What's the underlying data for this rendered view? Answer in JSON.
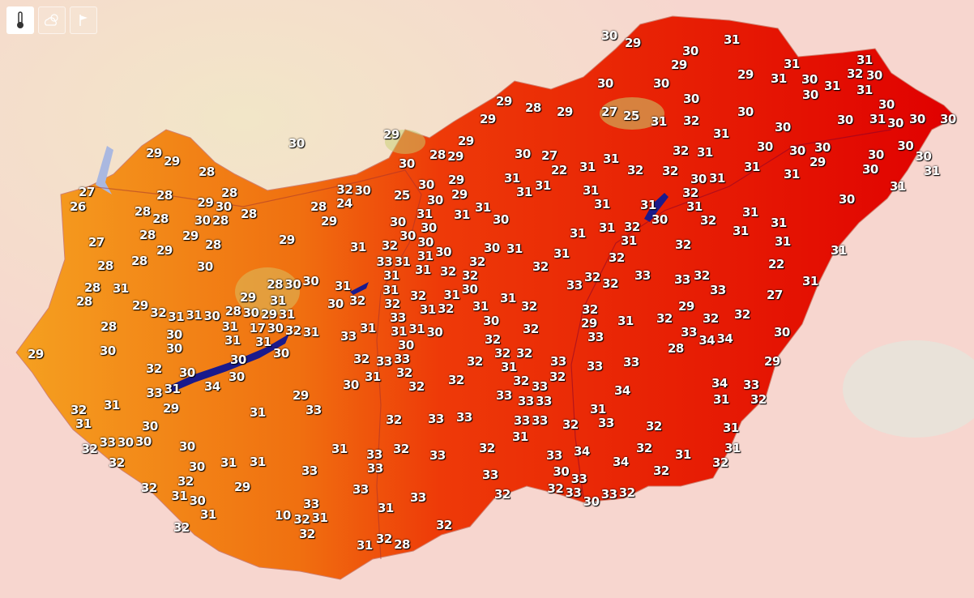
{
  "toolbar": {
    "buttons": [
      {
        "icon": "thermometer-icon",
        "active": true
      },
      {
        "icon": "cloud-sun-icon",
        "active": false
      },
      {
        "icon": "flag-icon",
        "active": false
      }
    ]
  },
  "map": {
    "country": "Hungary",
    "colors": {
      "cool": "#f5a020",
      "mid": "#f06010",
      "hot": "#e00000",
      "lake": "#1a1a8c",
      "surround": "#f7d6cf"
    },
    "temperatures": [
      30,
      29,
      31,
      30,
      29,
      31,
      31,
      32,
      31,
      30,
      30,
      31,
      29,
      30,
      30,
      30,
      31,
      30,
      29,
      28,
      29,
      27,
      25,
      30,
      30,
      31,
      30,
      30,
      30,
      30,
      29,
      31,
      32,
      30,
      31,
      29,
      29,
      30,
      30,
      30,
      30,
      30,
      31,
      32,
      29,
      29,
      28,
      29,
      30,
      27,
      22,
      31,
      30,
      30,
      29,
      30,
      31,
      32,
      32,
      30,
      31,
      31,
      31,
      30,
      31,
      28,
      31,
      31,
      31,
      29,
      29,
      30,
      32,
      30,
      31,
      32,
      31,
      31,
      27,
      26,
      28,
      29,
      28,
      30,
      25,
      30,
      24,
      31,
      30,
      31,
      30,
      32,
      31,
      31,
      28,
      28,
      28,
      28,
      30,
      28,
      29,
      31,
      31,
      30,
      31,
      30,
      30,
      30,
      31,
      32,
      31,
      31,
      31,
      28,
      29,
      28,
      29,
      31,
      32,
      27,
      29,
      31,
      32,
      30,
      31,
      30,
      30,
      31,
      31,
      28,
      28,
      30,
      31,
      31,
      32,
      32,
      32,
      31,
      32,
      22,
      28,
      30,
      30,
      33,
      31,
      31,
      32,
      32,
      32,
      33,
      33,
      32,
      33,
      31,
      28,
      28,
      31,
      31,
      30,
      33,
      27,
      29,
      28,
      30,
      29,
      31,
      31,
      30,
      32,
      32,
      31,
      32,
      31,
      31,
      31,
      32,
      29,
      29,
      32,
      31,
      31,
      30,
      32,
      32,
      32,
      32,
      32,
      31,
      29,
      28,
      31,
      17,
      30,
      32,
      31,
      31,
      31,
      30,
      33,
      31,
      30,
      32,
      33,
      33,
      34,
      34,
      30,
      30,
      30,
      31,
      31,
      33,
      33,
      30,
      32,
      32,
      32,
      32,
      28,
      29,
      30,
      30,
      30,
      32,
      33,
      32,
      31,
      33,
      33,
      33,
      29,
      32,
      30,
      30,
      34,
      31,
      32,
      32,
      32,
      32,
      30,
      31,
      33,
      34,
      34,
      33,
      32,
      33,
      33,
      33,
      33,
      29,
      31,
      31,
      29,
      33,
      31,
      32,
      31,
      31,
      32,
      33,
      33,
      33,
      33,
      32,
      33,
      32,
      31,
      30,
      31,
      33,
      32,
      30,
      30,
      30,
      31,
      32,
      33,
      32,
      33,
      34,
      32,
      31,
      31,
      32,
      30,
      31,
      31,
      33,
      33,
      33,
      34,
      32,
      33,
      30,
      32,
      32,
      32,
      31,
      29,
      33,
      33,
      33,
      32,
      32,
      33,
      33,
      33,
      32,
      30,
      30,
      31,
      10,
      32,
      31,
      31,
      32,
      32,
      32,
      32,
      31,
      28
    ]
  }
}
